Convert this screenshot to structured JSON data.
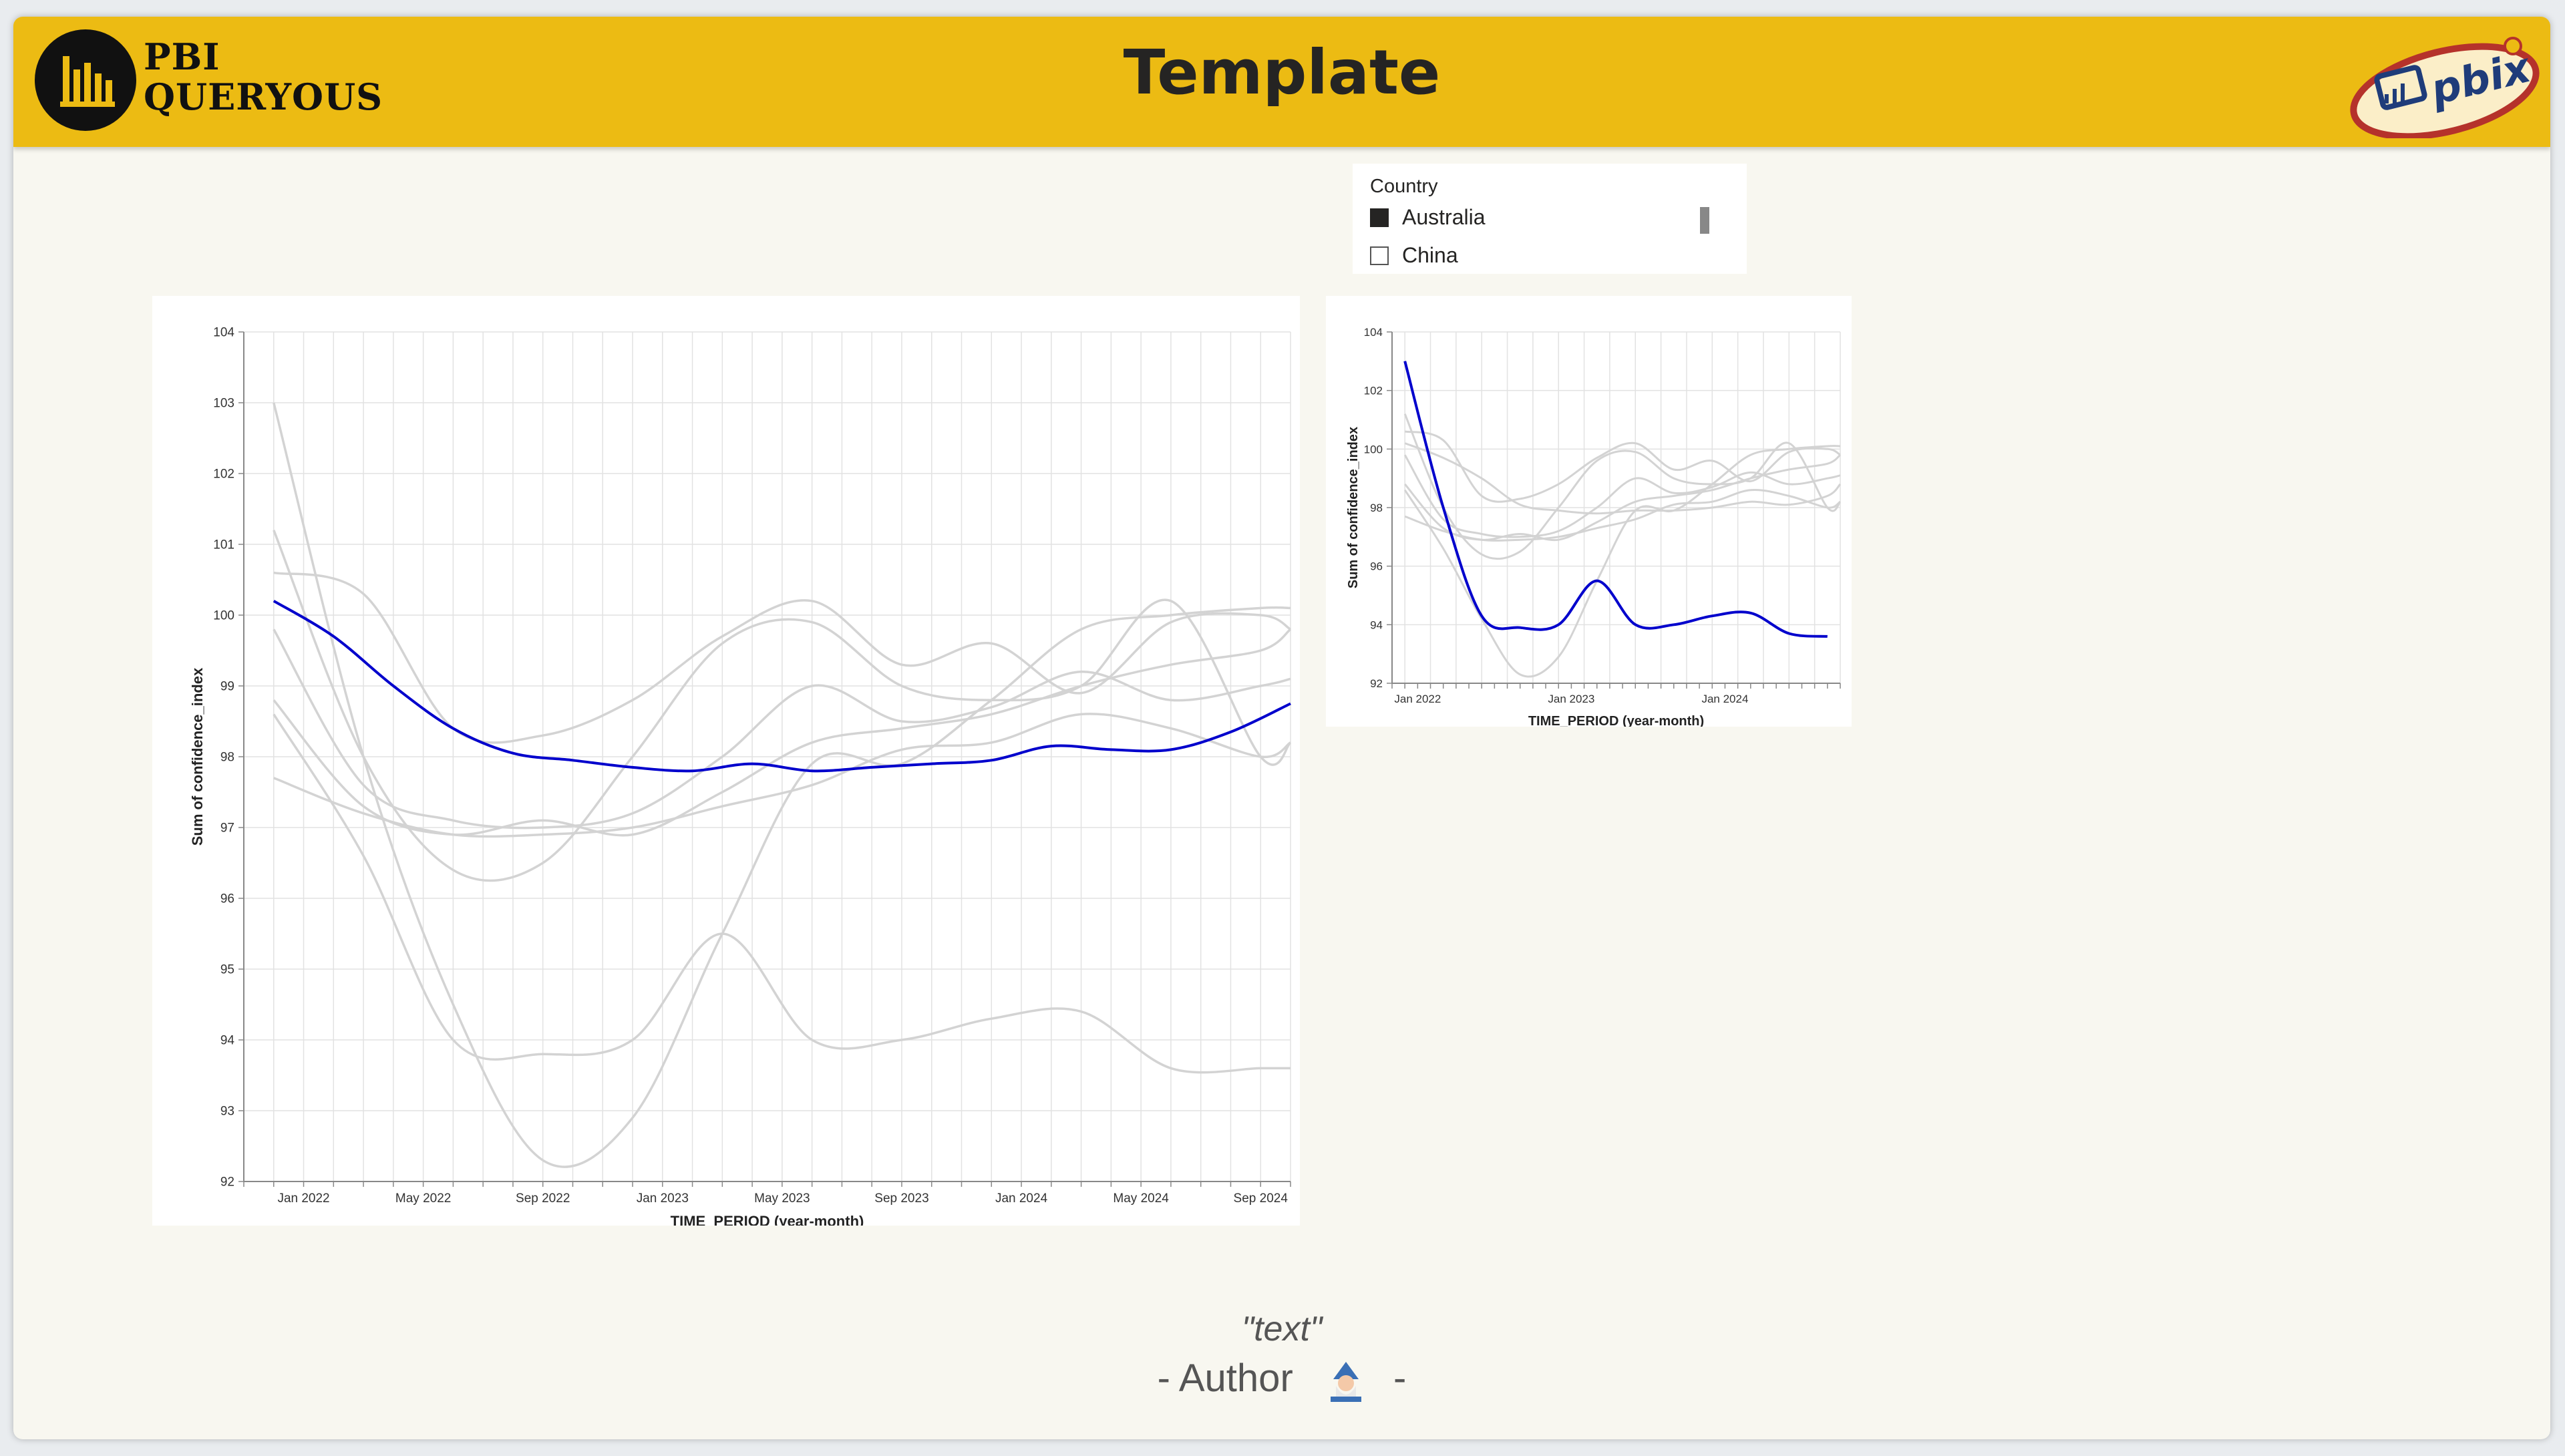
{
  "header": {
    "brand_line1": "PBI",
    "brand_line2": "QUERYOUS",
    "title": "Template",
    "badge_text": "pbix"
  },
  "slicer": {
    "title": "Country",
    "items": [
      {
        "label": "Australia",
        "selected": true
      },
      {
        "label": "China",
        "selected": false
      }
    ]
  },
  "footer": {
    "quote": "\"text\"",
    "author_prefix": "- Author",
    "author_suffix": "-",
    "icon": "wizard-icon"
  },
  "colors": {
    "header": "#ecbb13",
    "highlight_series": "#0000cc",
    "background_series": "#d3d3d3"
  },
  "chart_data": [
    {
      "type": "line",
      "xlabel": "TIME_PERIOD (year-month)",
      "ylabel": "Sum of confidence_index",
      "ylim": [
        92,
        104
      ],
      "yticks": [
        92,
        93,
        94,
        95,
        96,
        97,
        98,
        99,
        100,
        101,
        102,
        103,
        104
      ],
      "xlim": [
        "2021-11",
        "2024-10"
      ],
      "xticks": [
        {
          "value": "2022-01",
          "label": "Jan 2022"
        },
        {
          "value": "2022-05",
          "label": "May 2022"
        },
        {
          "value": "2022-09",
          "label": "Sep 2022"
        },
        {
          "value": "2023-01",
          "label": "Jan 2023"
        },
        {
          "value": "2023-05",
          "label": "May 2023"
        },
        {
          "value": "2023-09",
          "label": "Sep 2023"
        },
        {
          "value": "2024-01",
          "label": "Jan 2024"
        },
        {
          "value": "2024-05",
          "label": "May 2024"
        },
        {
          "value": "2024-09",
          "label": "Sep 2024"
        }
      ],
      "grid": true,
      "highlight": {
        "x": [
          "2021-12",
          "2022-02",
          "2022-04",
          "2022-06",
          "2022-08",
          "2022-10",
          "2022-12",
          "2023-02",
          "2023-04",
          "2023-06",
          "2023-08",
          "2023-10",
          "2023-12",
          "2024-02",
          "2024-04",
          "2024-06",
          "2024-08",
          "2024-10"
        ],
        "values": [
          100.2,
          99.7,
          99.0,
          98.4,
          98.05,
          97.95,
          97.85,
          97.8,
          97.9,
          97.8,
          97.85,
          97.9,
          97.95,
          98.15,
          98.1,
          98.1,
          98.35,
          98.75
        ]
      },
      "background_series": [
        {
          "x": [
            "2021-12",
            "2022-03",
            "2022-06",
            "2022-09",
            "2022-12",
            "2023-03",
            "2023-06",
            "2023-09",
            "2023-12",
            "2024-03",
            "2024-06",
            "2024-09",
            "2024-10"
          ],
          "values": [
            98.6,
            96.6,
            94.0,
            93.8,
            94.0,
            95.5,
            94.0,
            94.0,
            94.3,
            94.4,
            93.6,
            93.6,
            93.6
          ]
        },
        {
          "x": [
            "2021-12",
            "2022-03",
            "2022-06",
            "2022-09",
            "2022-12",
            "2023-03",
            "2023-06",
            "2023-09",
            "2023-12",
            "2024-03",
            "2024-06",
            "2024-09",
            "2024-10"
          ],
          "values": [
            103.0,
            98.0,
            94.5,
            92.3,
            92.9,
            95.5,
            97.9,
            97.9,
            98.8,
            99.8,
            100.0,
            100.1,
            100.1
          ]
        },
        {
          "x": [
            "2021-12",
            "2022-03",
            "2022-06",
            "2022-09",
            "2022-12",
            "2023-03",
            "2023-06",
            "2023-09",
            "2023-12",
            "2024-03",
            "2024-06",
            "2024-09",
            "2024-10"
          ],
          "values": [
            100.6,
            100.3,
            98.4,
            98.3,
            98.8,
            99.7,
            100.2,
            99.3,
            99.6,
            98.9,
            99.9,
            100.0,
            99.8
          ]
        },
        {
          "x": [
            "2021-12",
            "2022-03",
            "2022-06",
            "2022-09",
            "2022-12",
            "2023-03",
            "2023-06",
            "2023-09",
            "2023-12",
            "2024-03",
            "2024-06",
            "2024-09",
            "2024-10"
          ],
          "values": [
            101.2,
            98.0,
            96.4,
            96.5,
            98.0,
            99.6,
            99.9,
            99.0,
            98.8,
            99.0,
            100.2,
            98.0,
            98.2
          ]
        },
        {
          "x": [
            "2021-12",
            "2022-03",
            "2022-06",
            "2022-09",
            "2022-12",
            "2023-03",
            "2023-06",
            "2023-09",
            "2023-12",
            "2024-03",
            "2024-06",
            "2024-09",
            "2024-10"
          ],
          "values": [
            99.8,
            97.6,
            97.1,
            97.0,
            97.2,
            98.0,
            99.0,
            98.5,
            98.7,
            99.2,
            98.8,
            99.0,
            99.1
          ]
        },
        {
          "x": [
            "2021-12",
            "2022-03",
            "2022-06",
            "2022-09",
            "2022-12",
            "2023-03",
            "2023-06",
            "2023-09",
            "2023-12",
            "2024-03",
            "2024-06",
            "2024-09",
            "2024-10"
          ],
          "values": [
            98.8,
            97.3,
            96.9,
            97.1,
            96.9,
            97.5,
            98.2,
            98.4,
            98.6,
            99.0,
            99.3,
            99.5,
            99.8
          ]
        },
        {
          "x": [
            "2021-12",
            "2022-03",
            "2022-06",
            "2022-09",
            "2022-12",
            "2023-03",
            "2023-06",
            "2023-09",
            "2023-12",
            "2024-03",
            "2024-06",
            "2024-09",
            "2024-10"
          ],
          "values": [
            97.7,
            97.2,
            96.9,
            96.9,
            97.0,
            97.3,
            97.6,
            98.1,
            98.2,
            98.6,
            98.4,
            98.0,
            98.2
          ]
        }
      ]
    },
    {
      "type": "line",
      "xlabel": "TIME_PERIOD (year-month)",
      "ylabel": "Sum of confidence_index",
      "ylim": [
        92,
        104
      ],
      "yticks": [
        92,
        94,
        96,
        98,
        100,
        102,
        104
      ],
      "xlim": [
        "2021-11",
        "2024-10"
      ],
      "xticks": [
        {
          "value": "2022-01",
          "label": "Jan 2022"
        },
        {
          "value": "2023-01",
          "label": "Jan 2023"
        },
        {
          "value": "2024-01",
          "label": "Jan 2024"
        }
      ],
      "grid": true,
      "highlight": {
        "x": [
          "2021-12",
          "2022-03",
          "2022-06",
          "2022-09",
          "2022-12",
          "2023-03",
          "2023-06",
          "2023-09",
          "2023-12",
          "2024-03",
          "2024-06",
          "2024-09"
        ],
        "values": [
          103.0,
          98.0,
          94.3,
          93.9,
          94.0,
          95.5,
          94.0,
          94.0,
          94.3,
          94.4,
          93.7,
          93.6
        ]
      },
      "background_series": [
        {
          "x": [
            "2021-12",
            "2022-03",
            "2022-06",
            "2022-09",
            "2022-12",
            "2023-03",
            "2023-06",
            "2023-09",
            "2023-12",
            "2024-03",
            "2024-06",
            "2024-09",
            "2024-10"
          ],
          "values": [
            100.6,
            100.3,
            98.4,
            98.3,
            98.8,
            99.7,
            100.2,
            99.3,
            99.6,
            98.9,
            99.9,
            100.0,
            99.8
          ]
        },
        {
          "x": [
            "2021-12",
            "2022-03",
            "2022-06",
            "2022-09",
            "2022-12",
            "2023-03",
            "2023-06",
            "2023-09",
            "2023-12",
            "2024-03",
            "2024-06",
            "2024-09",
            "2024-10"
          ],
          "values": [
            101.2,
            98.0,
            96.4,
            96.5,
            98.0,
            99.6,
            99.9,
            99.0,
            98.8,
            99.0,
            100.2,
            98.0,
            98.2
          ]
        },
        {
          "x": [
            "2021-12",
            "2022-03",
            "2022-06",
            "2022-09",
            "2022-12",
            "2023-03",
            "2023-06",
            "2023-09",
            "2023-12",
            "2024-03",
            "2024-06",
            "2024-09",
            "2024-10"
          ],
          "values": [
            99.8,
            97.6,
            97.1,
            97.0,
            97.2,
            98.0,
            99.0,
            98.5,
            98.7,
            99.2,
            98.8,
            99.0,
            99.1
          ]
        },
        {
          "x": [
            "2021-12",
            "2022-03",
            "2022-06",
            "2022-09",
            "2022-12",
            "2023-03",
            "2023-06",
            "2023-09",
            "2023-12",
            "2024-03",
            "2024-06",
            "2024-09",
            "2024-10"
          ],
          "values": [
            98.8,
            97.3,
            96.9,
            97.1,
            96.9,
            97.5,
            98.2,
            98.4,
            98.6,
            99.0,
            99.3,
            99.5,
            99.8
          ]
        },
        {
          "x": [
            "2021-12",
            "2022-03",
            "2022-06",
            "2022-09",
            "2022-12",
            "2023-03",
            "2023-06",
            "2023-09",
            "2023-12",
            "2024-03",
            "2024-06",
            "2024-09",
            "2024-10"
          ],
          "values": [
            97.7,
            97.2,
            96.9,
            96.9,
            97.0,
            97.3,
            97.6,
            98.1,
            98.2,
            98.6,
            98.4,
            98.0,
            98.2
          ]
        },
        {
          "x": [
            "2021-12",
            "2022-03",
            "2022-06",
            "2022-09",
            "2022-12",
            "2023-03",
            "2023-06",
            "2023-09",
            "2023-12",
            "2024-03",
            "2024-06",
            "2024-09",
            "2024-10"
          ],
          "values": [
            100.2,
            99.7,
            99.0,
            98.1,
            97.9,
            97.8,
            97.9,
            97.9,
            98.0,
            98.2,
            98.1,
            98.4,
            98.8
          ]
        },
        {
          "x": [
            "2021-12",
            "2022-03",
            "2022-06",
            "2022-09",
            "2022-12",
            "2023-03",
            "2023-06",
            "2023-09",
            "2023-12",
            "2024-03",
            "2024-06",
            "2024-09",
            "2024-10"
          ],
          "values": [
            98.6,
            96.6,
            94.2,
            92.3,
            92.9,
            95.5,
            97.9,
            97.9,
            98.8,
            99.8,
            100.0,
            100.1,
            100.1
          ]
        }
      ]
    }
  ]
}
